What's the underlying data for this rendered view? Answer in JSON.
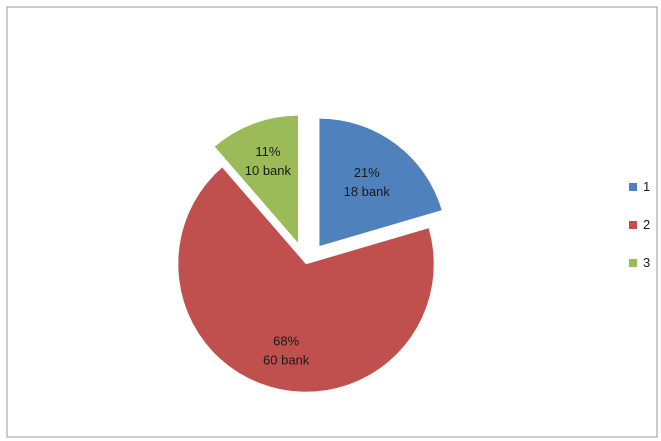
{
  "chart_data": {
    "type": "pie",
    "exploded": true,
    "slices": [
      {
        "category": "1",
        "percent_label": "21%",
        "value_label": "18  bank",
        "value": 18,
        "color": "#4f81bd"
      },
      {
        "category": "2",
        "percent_label": "68%",
        "value_label": "60 bank",
        "value": 60,
        "color": "#c0504d"
      },
      {
        "category": "3",
        "percent_label": "11%",
        "value_label": "10 bank",
        "value": 10,
        "color": "#9bbb59"
      }
    ],
    "legend": {
      "position": "right",
      "entries": [
        "1",
        "2",
        "3"
      ]
    }
  }
}
